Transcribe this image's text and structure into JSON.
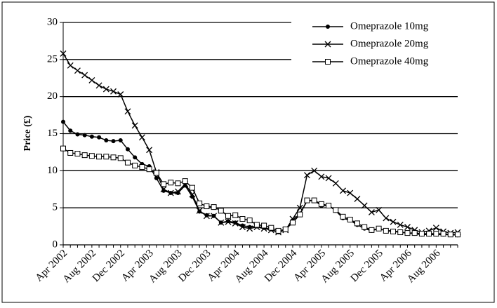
{
  "chart_data": {
    "type": "line",
    "y_label": "Price (£)",
    "categories": [
      "Apr 2002",
      null,
      null,
      null,
      "Aug 2002",
      null,
      null,
      null,
      "Dec 2002",
      null,
      null,
      null,
      "Apr 2003",
      null,
      null,
      null,
      "Aug 2003",
      null,
      null,
      null,
      "Dec 2003",
      null,
      null,
      null,
      "Apr 2004",
      null,
      null,
      null,
      "Aug 2004",
      null,
      null,
      null,
      "Dec 2004",
      null,
      null,
      null,
      "Apr 2005",
      null,
      null,
      null,
      "Aug 2005",
      null,
      null,
      null,
      "Dec 2005",
      null,
      null,
      null,
      "Apr 2006",
      null,
      null,
      null,
      "Aug 2006",
      null,
      null,
      null
    ],
    "series": [
      {
        "name": "Omeprazole 10mg",
        "color": "#000000",
        "marker": "circle",
        "values": [
          16.6,
          15.4,
          14.9,
          14.8,
          14.6,
          14.5,
          14.1,
          14.0,
          14.1,
          12.9,
          11.8,
          10.9,
          10.6,
          9.0,
          7.3,
          7.0,
          7.0,
          8.0,
          6.5,
          4.5,
          4.0,
          3.9,
          3.0,
          3.2,
          3.0,
          2.6,
          2.4,
          2.5,
          2.3,
          2.1,
          1.7,
          2.0,
          3.3,
          4.2,
          5.9,
          6.0,
          5.3,
          5.3,
          4.6,
          3.6,
          3.3,
          2.7,
          2.2,
          1.9,
          2.2,
          1.9,
          1.9,
          1.7,
          1.6,
          1.5,
          1.4,
          1.4,
          1.4,
          1.4,
          1.4,
          1.3
        ]
      },
      {
        "name": "Omeprazole 20mg",
        "color": "#000000",
        "marker": "x",
        "values": [
          25.8,
          24.2,
          23.5,
          22.9,
          22.2,
          21.5,
          21.0,
          20.7,
          20.3,
          18.0,
          16.1,
          14.5,
          12.8,
          9.8,
          7.5,
          7.0,
          7.2,
          8.2,
          6.8,
          4.6,
          3.9,
          3.9,
          3.0,
          3.1,
          2.9,
          2.4,
          2.2,
          2.4,
          2.2,
          2.0,
          1.7,
          2.0,
          3.5,
          5.0,
          9.4,
          10.0,
          9.2,
          9.0,
          8.3,
          7.3,
          7.0,
          6.2,
          5.3,
          4.4,
          4.7,
          3.6,
          3.1,
          2.7,
          2.4,
          2.0,
          1.7,
          1.9,
          2.3,
          1.8,
          1.6,
          1.7
        ]
      },
      {
        "name": "Omeprazole 40mg",
        "color": "#000000",
        "marker": "square",
        "values": [
          13.0,
          12.4,
          12.3,
          12.1,
          12.0,
          11.9,
          11.9,
          11.8,
          11.7,
          11.1,
          10.7,
          10.5,
          10.2,
          9.7,
          8.2,
          8.4,
          8.3,
          8.6,
          7.7,
          5.6,
          5.2,
          5.1,
          4.6,
          3.9,
          4.0,
          3.5,
          3.3,
          2.7,
          2.6,
          2.3,
          1.9,
          2.1,
          3.0,
          4.1,
          6.0,
          6.0,
          5.5,
          5.3,
          4.7,
          3.8,
          3.4,
          2.9,
          2.4,
          2.0,
          2.2,
          1.9,
          1.8,
          1.7,
          1.6,
          1.6,
          1.5,
          1.5,
          1.5,
          1.5,
          1.4,
          1.4
        ]
      }
    ],
    "ylim": [
      0,
      30
    ],
    "yticks": [
      0,
      5,
      10,
      15,
      20,
      25,
      30
    ],
    "grid": true,
    "legend": "top-right"
  }
}
